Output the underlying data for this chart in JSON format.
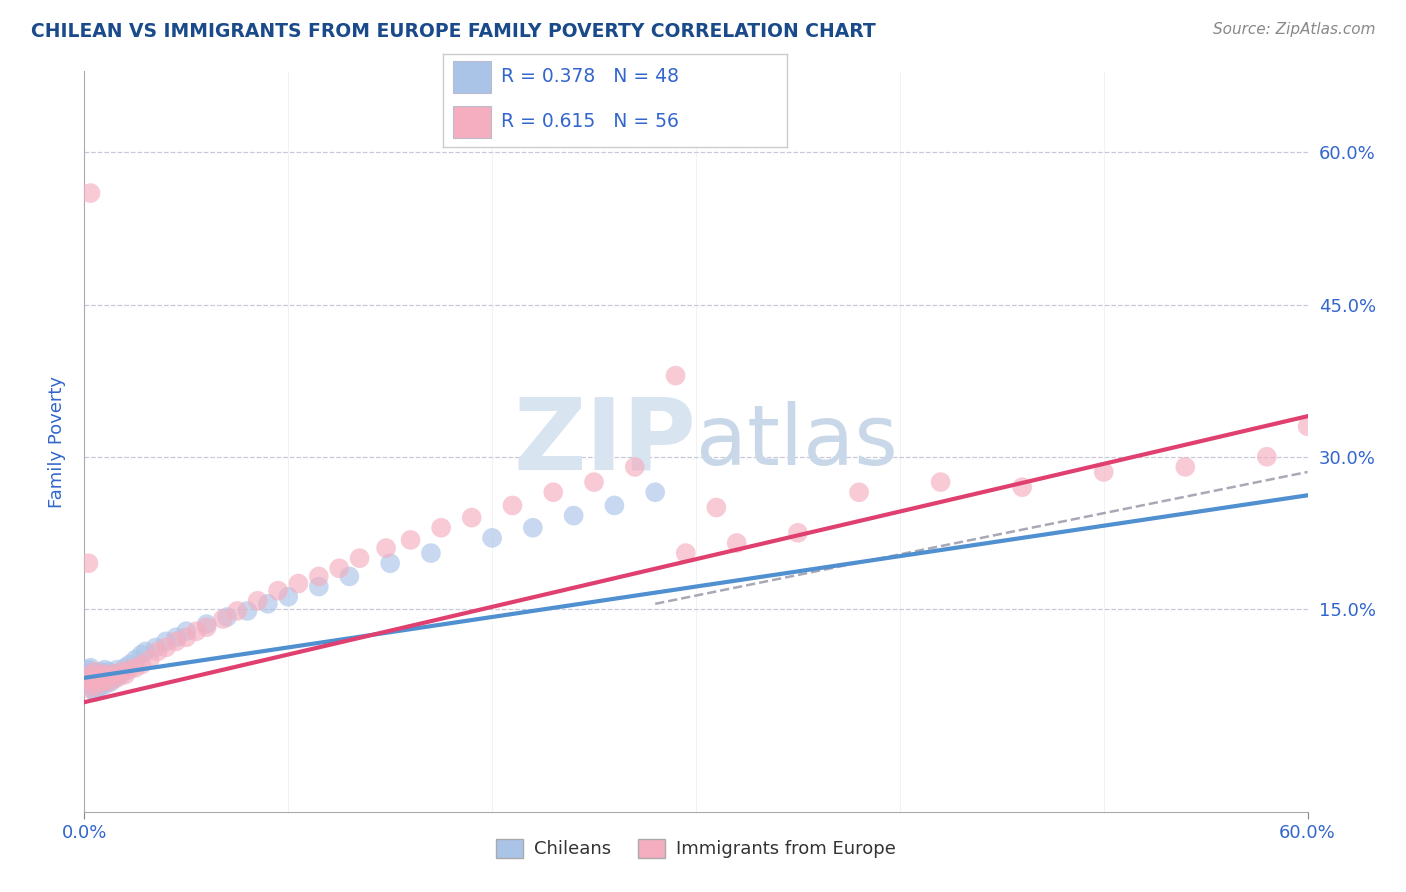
{
  "title": "CHILEAN VS IMMIGRANTS FROM EUROPE FAMILY POVERTY CORRELATION CHART",
  "source": "Source: ZipAtlas.com",
  "ylabel": "Family Poverty",
  "yticks": [
    "15.0%",
    "30.0%",
    "45.0%",
    "60.0%"
  ],
  "ytick_values": [
    0.15,
    0.3,
    0.45,
    0.6
  ],
  "xrange": [
    0.0,
    0.6
  ],
  "yrange": [
    -0.05,
    0.68
  ],
  "chilean_color": "#aac4e8",
  "immigrant_color": "#f5aec0",
  "chilean_line_color": "#5090d0",
  "immigrant_line_color": "#e04070",
  "dash_color": "#9999aa",
  "legend_text_color": "#3366cc",
  "title_color": "#1a4a8a",
  "axis_label_color": "#3366cc",
  "tick_color": "#3366cc",
  "watermark_color": "#d8e4f0",
  "legend_label1": "Chileans",
  "legend_label2": "Immigrants from Europe",
  "chilean_x": [
    0.001,
    0.002,
    0.003,
    0.003,
    0.004,
    0.004,
    0.005,
    0.005,
    0.006,
    0.007,
    0.007,
    0.008,
    0.008,
    0.009,
    0.009,
    0.01,
    0.01,
    0.011,
    0.012,
    0.013,
    0.014,
    0.015,
    0.016,
    0.018,
    0.02,
    0.022,
    0.025,
    0.028,
    0.03,
    0.035,
    0.04,
    0.045,
    0.05,
    0.06,
    0.07,
    0.08,
    0.09,
    0.1,
    0.115,
    0.13,
    0.15,
    0.17,
    0.2,
    0.22,
    0.24,
    0.26,
    0.28,
    0.005
  ],
  "chilean_y": [
    0.085,
    0.09,
    0.08,
    0.092,
    0.075,
    0.088,
    0.07,
    0.082,
    0.078,
    0.085,
    0.072,
    0.08,
    0.088,
    0.076,
    0.084,
    0.075,
    0.09,
    0.082,
    0.088,
    0.078,
    0.085,
    0.082,
    0.09,
    0.085,
    0.092,
    0.095,
    0.1,
    0.105,
    0.108,
    0.112,
    0.118,
    0.122,
    0.128,
    0.135,
    0.142,
    0.148,
    0.155,
    0.162,
    0.172,
    0.182,
    0.195,
    0.205,
    0.22,
    0.23,
    0.242,
    0.252,
    0.265,
    0.068
  ],
  "immigrant_x": [
    0.001,
    0.002,
    0.003,
    0.004,
    0.005,
    0.006,
    0.007,
    0.008,
    0.009,
    0.01,
    0.011,
    0.012,
    0.014,
    0.016,
    0.018,
    0.02,
    0.022,
    0.025,
    0.028,
    0.032,
    0.036,
    0.04,
    0.045,
    0.05,
    0.055,
    0.06,
    0.068,
    0.075,
    0.085,
    0.095,
    0.105,
    0.115,
    0.125,
    0.135,
    0.148,
    0.16,
    0.175,
    0.19,
    0.21,
    0.23,
    0.25,
    0.27,
    0.295,
    0.32,
    0.35,
    0.38,
    0.42,
    0.46,
    0.5,
    0.54,
    0.58,
    0.6,
    0.29,
    0.31,
    0.003,
    0.002
  ],
  "immigrant_y": [
    0.08,
    0.072,
    0.085,
    0.078,
    0.088,
    0.074,
    0.082,
    0.078,
    0.086,
    0.08,
    0.084,
    0.078,
    0.086,
    0.082,
    0.088,
    0.085,
    0.09,
    0.092,
    0.095,
    0.1,
    0.108,
    0.112,
    0.118,
    0.122,
    0.128,
    0.132,
    0.14,
    0.148,
    0.158,
    0.168,
    0.175,
    0.182,
    0.19,
    0.2,
    0.21,
    0.218,
    0.23,
    0.24,
    0.252,
    0.265,
    0.275,
    0.29,
    0.205,
    0.215,
    0.225,
    0.265,
    0.275,
    0.27,
    0.285,
    0.29,
    0.3,
    0.33,
    0.38,
    0.25,
    0.56,
    0.195
  ],
  "chilean_line": [
    0.0,
    0.6,
    0.082,
    0.262
  ],
  "immigrant_line": [
    0.0,
    0.6,
    0.058,
    0.34
  ],
  "dash_line": [
    0.28,
    0.6,
    0.155,
    0.285
  ]
}
